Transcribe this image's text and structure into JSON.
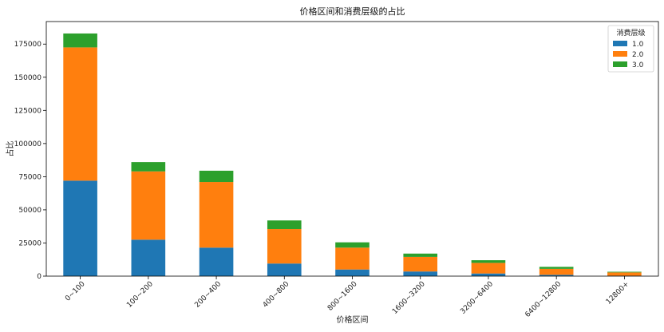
{
  "chart_data": {
    "type": "bar",
    "stacked": true,
    "title": "价格区间和消费层级的占比",
    "xlabel": "价格区间",
    "ylabel": "占比",
    "categories": [
      "0~100",
      "100~200",
      "200~400",
      "400~800",
      "800~1600",
      "1600~3200",
      "3200~6400",
      "6400~12800",
      "12800+"
    ],
    "ylim": [
      0,
      192000
    ],
    "yticks": [
      0,
      25000,
      50000,
      75000,
      100000,
      125000,
      150000,
      175000
    ],
    "legend": {
      "title": "消费层级",
      "placement": "top-right"
    },
    "series": [
      {
        "name": "1.0",
        "color": "#1f77b4",
        "values": [
          72000,
          27500,
          21500,
          9500,
          5000,
          3500,
          2000,
          1000,
          300
        ]
      },
      {
        "name": "2.0",
        "color": "#ff7f0e",
        "values": [
          100500,
          51500,
          49500,
          26000,
          16500,
          11000,
          8000,
          4500,
          2500
        ]
      },
      {
        "name": "3.0",
        "color": "#2ca02c",
        "values": [
          10500,
          7000,
          8500,
          6500,
          4000,
          2500,
          2000,
          1500,
          500
        ]
      }
    ]
  }
}
